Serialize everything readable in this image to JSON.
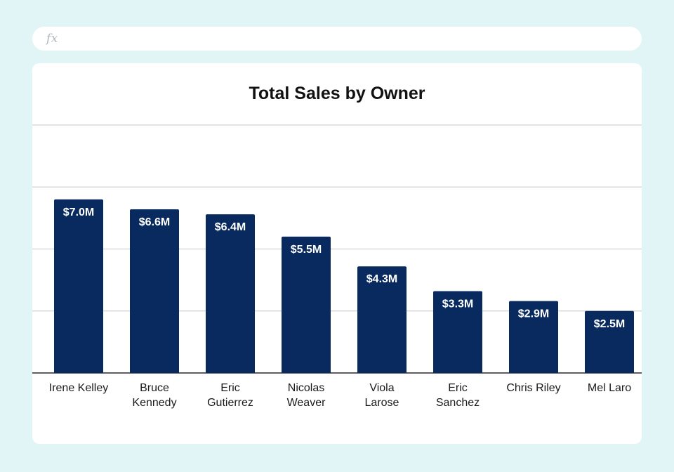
{
  "formula_bar": {
    "icon_label": "fx",
    "value": ""
  },
  "chart_data": {
    "type": "bar",
    "title": "Total Sales by Owner",
    "categories": [
      [
        "Irene Kelley"
      ],
      [
        "Bruce",
        "Kennedy"
      ],
      [
        "Eric",
        "Gutierrez"
      ],
      [
        "Nicolas",
        "Weaver"
      ],
      [
        "Viola",
        "Larose"
      ],
      [
        "Eric",
        "Sanchez"
      ],
      [
        "Chris Riley"
      ],
      [
        "Mel Laro"
      ]
    ],
    "values": [
      7.0,
      6.6,
      6.4,
      5.5,
      4.3,
      3.3,
      2.9,
      2.5
    ],
    "data_labels": [
      "$7.0M",
      "$6.6M",
      "$6.4M",
      "$5.5M",
      "$4.3M",
      "$3.3M",
      "$2.9M",
      "$2.5M"
    ],
    "unit": "$M",
    "ylim": [
      0,
      10
    ],
    "gridline_values": [
      0,
      2.5,
      5,
      7.5,
      10
    ],
    "xlabel": "",
    "ylabel": "",
    "grid": true,
    "legend": "none",
    "bar_color": "#082a5e"
  }
}
